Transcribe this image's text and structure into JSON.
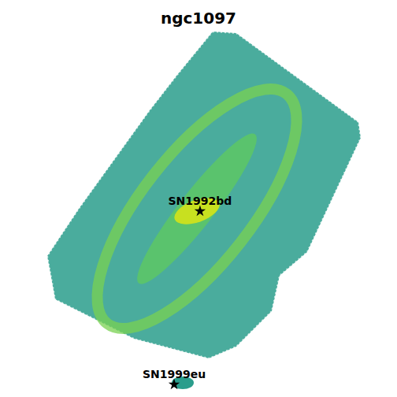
{
  "chart_data": {
    "type": "scatter",
    "title": "ngc1097",
    "labels": [
      "SN1992bd",
      "SN1999eu"
    ],
    "x": [
      50.4,
      43.6
    ],
    "y": [
      50.4,
      2.6
    ],
    "xlim": [
      0,
      100
    ],
    "ylim": [
      0,
      100
    ],
    "color": "#000000",
    "marker": "star",
    "tick_labels": false
  }
}
